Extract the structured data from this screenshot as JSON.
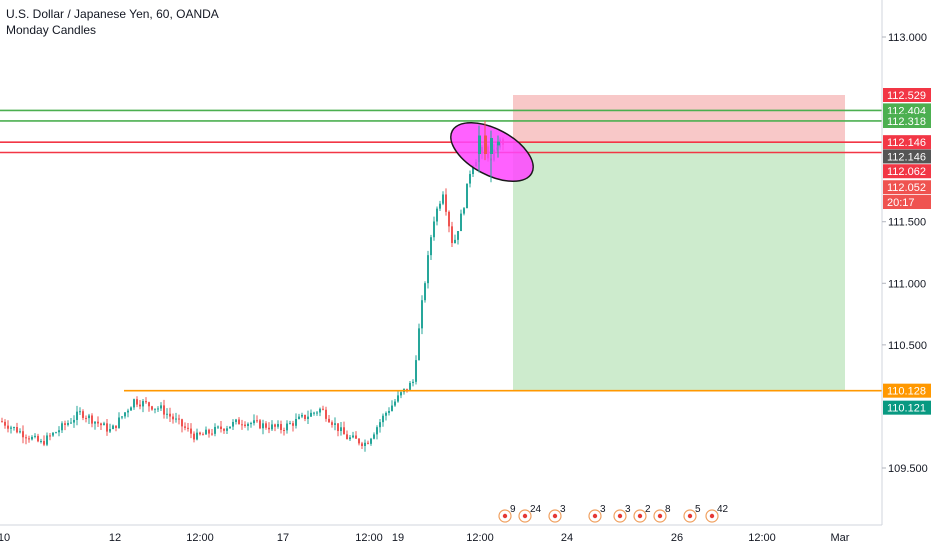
{
  "header": {
    "symbol_title": "U.S. Dollar / Japanese Yen, 60, OANDA",
    "study": "Monday Candles"
  },
  "chart_data": {
    "type": "candlestick",
    "title": "U.S. Dollar / Japanese Yen, 60, OANDA",
    "indicator": "Monday Candles",
    "y_axis": {
      "ticks": [
        113.0,
        112.5,
        112.0,
        111.5,
        111.0,
        110.5,
        110.0,
        109.5
      ],
      "tick_labels": [
        "113.000",
        "111.500",
        "111.000",
        "110.500",
        "109.500"
      ],
      "range": [
        109.22,
        113.35
      ]
    },
    "x_axis": {
      "tick_labels": [
        "10",
        "12",
        "12:00",
        "17",
        "12:00",
        "19",
        "12:00",
        "24",
        "26",
        "12:00",
        "Mar"
      ]
    },
    "horizontal_lines": [
      {
        "value": 112.404,
        "color": "#4caf50"
      },
      {
        "value": 112.318,
        "color": "#4caf50"
      },
      {
        "value": 112.146,
        "color": "#f23645"
      },
      {
        "value": 112.062,
        "color": "#f23645"
      },
      {
        "value": 110.128,
        "color": "#ff9800"
      }
    ],
    "price_tags": [
      {
        "label": "112.529",
        "value": 112.529,
        "color": "#f23645"
      },
      {
        "label": "112.404",
        "value": 112.404,
        "color": "#4caf50"
      },
      {
        "label": "112.318",
        "value": 112.318,
        "color": "#4caf50"
      },
      {
        "label": "112.146",
        "value": 112.146,
        "color": "#f23645"
      },
      {
        "label": "112.146",
        "value": 112.03,
        "color": "#555555"
      },
      {
        "label": "112.062",
        "value": 111.91,
        "color": "#f23645"
      },
      {
        "label": "112.052",
        "value": 111.78,
        "color": "#ef5350"
      },
      {
        "label": "20:17",
        "value": 111.66,
        "color": "#ef5350"
      },
      {
        "label": "110.128",
        "value": 110.128,
        "color": "#ff9800"
      },
      {
        "label": "110.121",
        "value": 109.99,
        "color": "#089981"
      }
    ],
    "position": {
      "type": "short",
      "stop": 112.529,
      "entry": 112.146,
      "target": 110.128,
      "stop_color": "#f8c8c8",
      "target_color": "#cdebcd"
    },
    "highlight": {
      "shape": "ellipse",
      "color": "#ff45ff"
    },
    "events": [
      {
        "label": "9"
      },
      {
        "label": "24"
      },
      {
        "label": "3"
      },
      {
        "label": "3"
      },
      {
        "label": "3"
      },
      {
        "label": "2"
      },
      {
        "label": "8"
      },
      {
        "label": "5"
      },
      {
        "label": "42"
      }
    ],
    "colors": {
      "up": "#26a69a",
      "down": "#ef5350"
    }
  }
}
